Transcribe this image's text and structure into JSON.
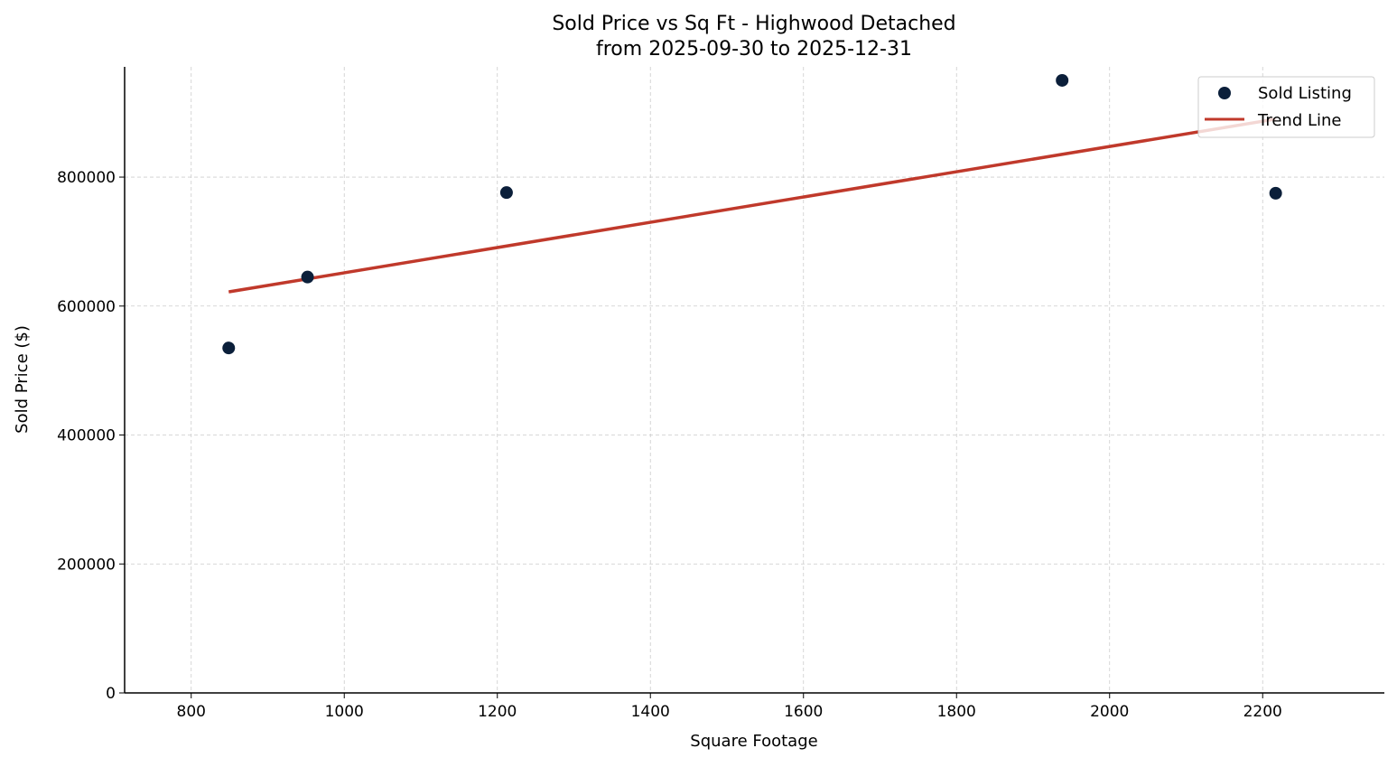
{
  "chart_data": {
    "type": "scatter",
    "title": "Sold Price vs Sq Ft - Highwood Detached",
    "subtitle": "from 2025-09-30 to 2025-12-31",
    "xlabel": "Square Footage",
    "ylabel": "Sold Price ($)",
    "xlim": [
      713,
      2359
    ],
    "ylim": [
      0,
      971000
    ],
    "xticks": [
      800,
      1000,
      1200,
      1400,
      1600,
      1800,
      2000,
      2200
    ],
    "yticks": [
      0,
      200000,
      400000,
      600000,
      800000
    ],
    "grid": true,
    "legend_placement": "top-right",
    "series": [
      {
        "name": "Sold Listing",
        "kind": "scatter",
        "color": "#0b1f3a",
        "points": [
          [
            849,
            535000
          ],
          [
            952,
            645000
          ],
          [
            1212,
            776000
          ],
          [
            1938,
            950000
          ],
          [
            2217,
            775000
          ]
        ]
      },
      {
        "name": "Trend Line",
        "kind": "line",
        "color": "#c0392b",
        "points": [
          [
            849,
            622000
          ],
          [
            2217,
            890000
          ]
        ]
      }
    ]
  }
}
